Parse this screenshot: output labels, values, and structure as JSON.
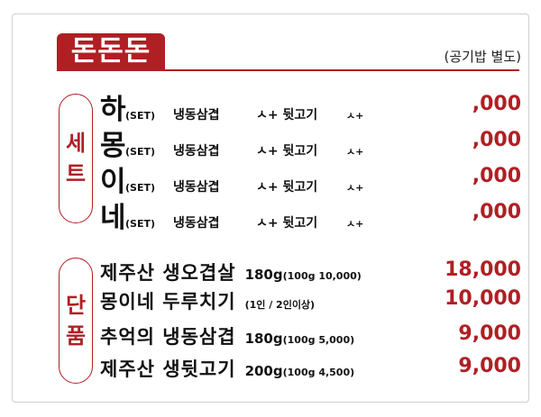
{
  "title": "돈돈돈",
  "note": "(공기밥 별도)",
  "section_set": {
    "chars": [
      "세",
      "트"
    ]
  },
  "section_single": {
    "chars": [
      "단",
      "품"
    ]
  },
  "sets": [
    {
      "name": "하",
      "tag": "(SET)",
      "desc": "냉동삼겹",
      "plus1": "ㅅ+ 뒷고기",
      "plus2": "ㅅ+",
      "price": ",000"
    },
    {
      "name": "몽",
      "tag": "(SET)",
      "desc": "냉동삼겹",
      "plus1": "ㅅ+ 뒷고기",
      "plus2": "ㅅ+",
      "price": ",000"
    },
    {
      "name": "이",
      "tag": "(SET)",
      "desc": "냉동삼겹",
      "plus1": "ㅅ+ 뒷고기",
      "plus2": "ㅅ+",
      "price": ",000"
    },
    {
      "name": "네",
      "tag": "(SET)",
      "desc": "냉동삼겹",
      "plus1": "ㅅ+ 뒷고기",
      "plus2": "ㅅ+",
      "price": ",000"
    }
  ],
  "items": [
    {
      "name": "제주산 생오겹살",
      "amount": "180g",
      "unit_note": "(100g 10,000)",
      "price": "18,000"
    },
    {
      "name": "몽이네 두루치기",
      "amount": "",
      "unit_note": "(1인 / 2인이상)",
      "price": "10,000"
    },
    {
      "name": "추억의 냉동삼겹",
      "amount": "180g",
      "unit_note": "(100g 5,000)",
      "price": "9,000"
    },
    {
      "name": "제주산 생뒷고기",
      "amount": "200g",
      "unit_note": "(100g 4,500)",
      "price": "9,000"
    }
  ],
  "colors": {
    "accent": "#b01f24",
    "text": "#111111",
    "border": "#cfcfcf"
  }
}
